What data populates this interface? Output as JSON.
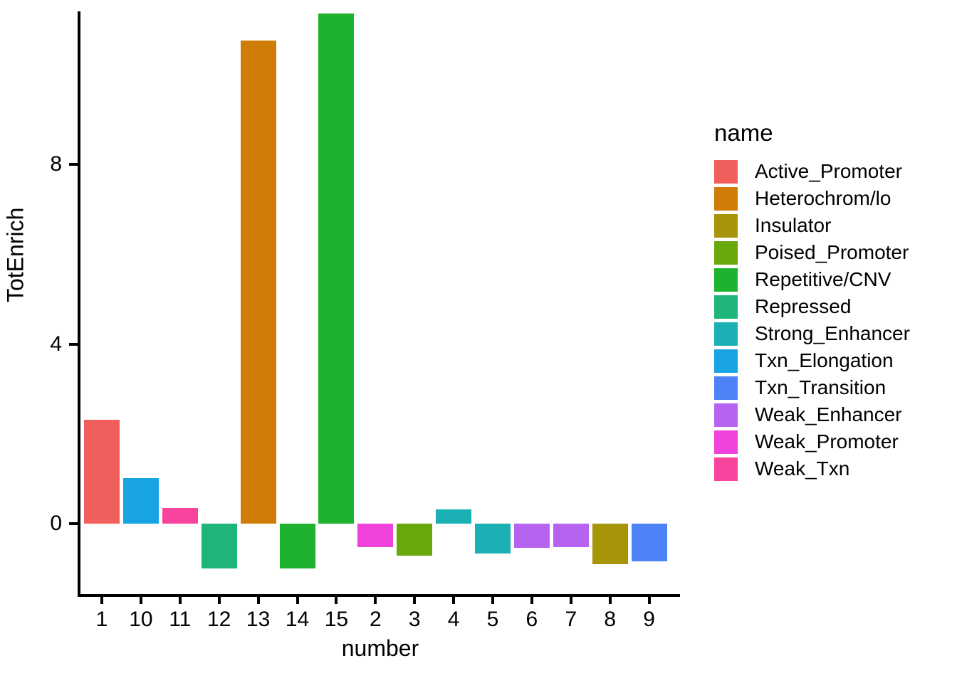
{
  "chart_data": {
    "type": "bar",
    "title": "",
    "xlabel": "number",
    "ylabel": "TotEnrich",
    "legend_title": "name",
    "legend_position": "right",
    "grid": false,
    "ylim": [
      -1.57,
      11.41
    ],
    "y_ticks": [
      0,
      4,
      8
    ],
    "categories": [
      "1",
      "10",
      "11",
      "12",
      "13",
      "14",
      "15",
      "2",
      "3",
      "4",
      "5",
      "6",
      "7",
      "8",
      "9"
    ],
    "bars": [
      {
        "x": "1",
        "name": "Active_Promoter",
        "value": 2.31
      },
      {
        "x": "10",
        "name": "Txn_Elongation",
        "value": 1.01
      },
      {
        "x": "11",
        "name": "Weak_Txn",
        "value": 0.35
      },
      {
        "x": "12",
        "name": "Repressed",
        "value": -1.0
      },
      {
        "x": "13",
        "name": "Heterochrom/lo",
        "value": 10.76
      },
      {
        "x": "14",
        "name": "Repetitive/CNV",
        "value": -1.0
      },
      {
        "x": "15",
        "name": "Repetitive/CNV",
        "value": 11.36
      },
      {
        "x": "2",
        "name": "Weak_Promoter",
        "value": -0.53
      },
      {
        "x": "3",
        "name": "Poised_Promoter",
        "value": -0.72
      },
      {
        "x": "4",
        "name": "Strong_Enhancer",
        "value": 0.31
      },
      {
        "x": "5",
        "name": "Strong_Enhancer",
        "value": -0.66
      },
      {
        "x": "6",
        "name": "Weak_Enhancer",
        "value": -0.54
      },
      {
        "x": "7",
        "name": "Weak_Enhancer",
        "value": -0.52
      },
      {
        "x": "8",
        "name": "Insulator",
        "value": -0.91
      },
      {
        "x": "9",
        "name": "Txn_Transition",
        "value": -0.84
      }
    ],
    "legend": [
      {
        "label": "Active_Promoter",
        "color": "#F15F5C"
      },
      {
        "label": "Heterochrom/lo",
        "color": "#D07D08"
      },
      {
        "label": "Insulator",
        "color": "#A89408"
      },
      {
        "label": "Poised_Promoter",
        "color": "#68A80A"
      },
      {
        "label": "Repetitive/CNV",
        "color": "#1EB22E"
      },
      {
        "label": "Repressed",
        "color": "#1DB578"
      },
      {
        "label": "Strong_Enhancer",
        "color": "#1BB0B3"
      },
      {
        "label": "Txn_Elongation",
        "color": "#18A3E3"
      },
      {
        "label": "Txn_Transition",
        "color": "#4E83F7"
      },
      {
        "label": "Weak_Enhancer",
        "color": "#B763F2"
      },
      {
        "label": "Weak_Promoter",
        "color": "#EE42DA"
      },
      {
        "label": "Weak_Txn",
        "color": "#F9449E"
      }
    ],
    "colors": {
      "axis_line": "#000000",
      "text": "#000000",
      "background": "#ffffff"
    }
  }
}
